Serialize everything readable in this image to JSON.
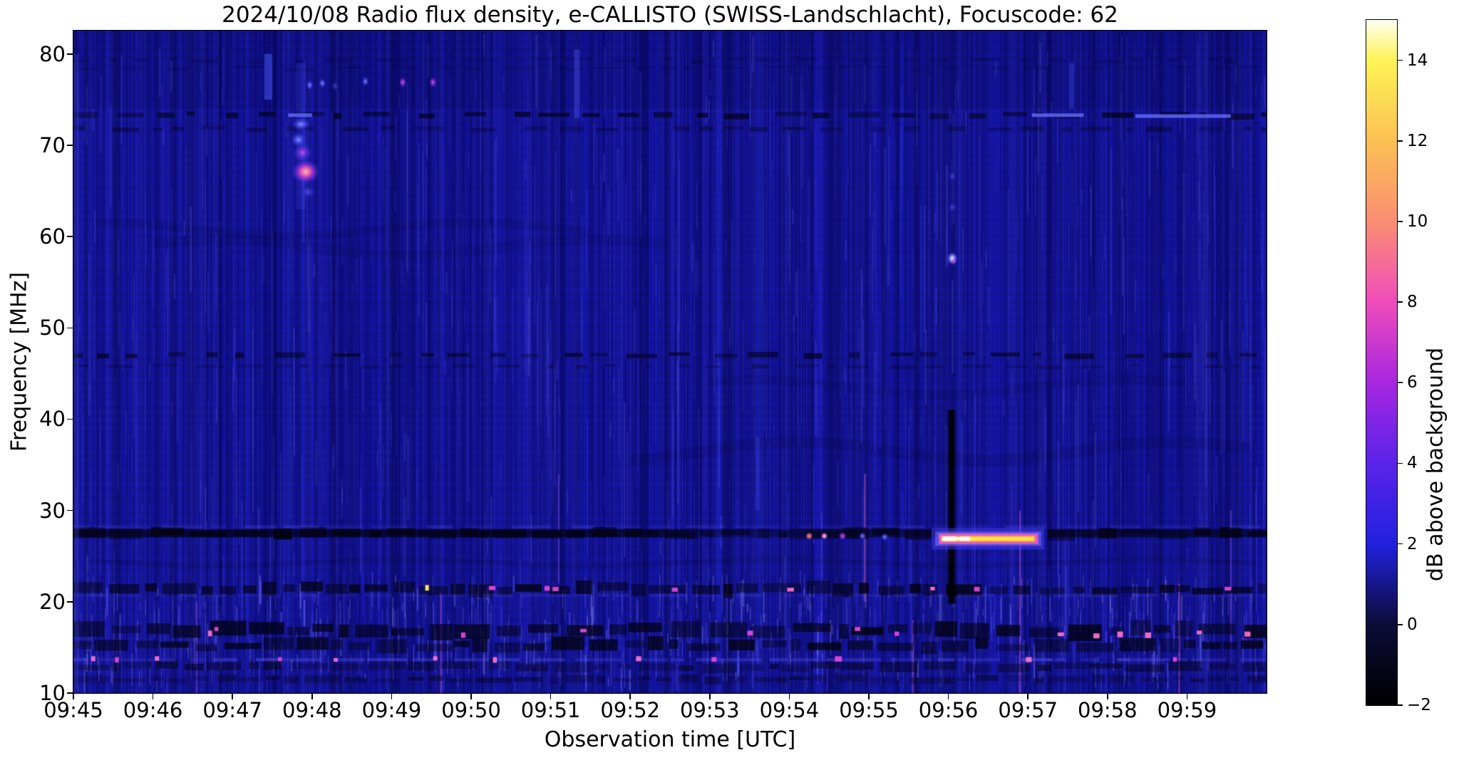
{
  "chart_data": {
    "type": "heatmap",
    "subtype": "radio-spectrogram",
    "title": "2024/10/08  Radio flux density, e-CALLISTO (SWISS-Landschlacht), Focuscode: 62",
    "date": "2024/10/08",
    "instrument": "e-CALLISTO (SWISS-Landschlacht)",
    "focuscode": "62",
    "xlabel": "Observation time [UTC]",
    "ylabel": "Frequency [MHz]",
    "x_tick_labels": [
      "09:45",
      "09:46",
      "09:47",
      "09:48",
      "09:49",
      "09:50",
      "09:51",
      "09:52",
      "09:53",
      "09:54",
      "09:55",
      "09:56",
      "09:57",
      "09:58",
      "09:59"
    ],
    "x_range_minutes": [
      0,
      15
    ],
    "time_start": "09:45",
    "time_end": "10:00",
    "y_ticks_mhz": [
      80,
      70,
      60,
      50,
      40,
      30,
      20,
      10
    ],
    "y_range_mhz": [
      10,
      82.56
    ],
    "grid": false,
    "base_color": "#14149b",
    "colorbar": {
      "label": "dB above background",
      "tick_labels": [
        "14",
        "12",
        "10",
        "8",
        "6",
        "4",
        "2",
        "0",
        "−2"
      ],
      "tick_values": [
        14,
        12,
        10,
        8,
        6,
        4,
        2,
        0,
        -2
      ],
      "range": [
        -2,
        15
      ],
      "gradient_stops": [
        [
          -2,
          "#000000"
        ],
        [
          0,
          "#0c0c38"
        ],
        [
          2,
          "#2121dd"
        ],
        [
          4,
          "#5a24ea"
        ],
        [
          6,
          "#a726e0"
        ],
        [
          8,
          "#ef4cba"
        ],
        [
          10,
          "#fa8e72"
        ],
        [
          12,
          "#fcc153"
        ],
        [
          14,
          "#fdf355"
        ],
        [
          15,
          "#fffff2"
        ]
      ]
    },
    "notable_features": [
      "Solar radio burst (type III like) 09:47:45-09:48:05 at 65-72 MHz, peak ~8 dB",
      "Small emission dots ~76.5-77 MHz between 09:48 and 09:49:30",
      "Intense narrowband emission ~26.5-27.5 MHz from 09:56:00 to 09:57:10, peak >14 dB",
      "Vertical data-gap / absorption line at 09:56:05 spanning ~20-41 MHz",
      "Bright point at 57.6 MHz at 09:56:05",
      "Persistent RFI bands near 73, 71.8, 47, 46, 27.5, 21.4, 16.9, 15.2, 12.9 MHz",
      "Strong blotchy interference below 22 MHz with magenta/pink speckles"
    ],
    "features": {
      "dashed_dark_bands": [
        {
          "f": 73.3,
          "h": 0.55,
          "alpha": 0.72
        },
        {
          "f": 71.8,
          "h": 0.45,
          "alpha": 0.42
        },
        {
          "f": 79.3,
          "h": 0.35,
          "alpha": 0.25
        },
        {
          "f": 78.4,
          "h": 0.3,
          "alpha": 0.2
        },
        {
          "f": 47.0,
          "h": 0.5,
          "alpha": 0.65
        },
        {
          "f": 45.8,
          "h": 0.4,
          "alpha": 0.32
        }
      ],
      "blotchy_dark_bands": [
        {
          "f": 21.4,
          "h": 1.1,
          "alpha": 0.82
        },
        {
          "f": 16.9,
          "h": 1.3,
          "alpha": 0.85
        },
        {
          "f": 15.2,
          "h": 1.1,
          "alpha": 0.8
        },
        {
          "f": 12.9,
          "h": 0.8,
          "alpha": 0.55
        },
        {
          "f": 11.5,
          "h": 0.6,
          "alpha": 0.45
        }
      ],
      "band_275_segments": [
        {
          "t1": 0.0,
          "t2": 7.7,
          "alpha": 0.9
        },
        {
          "t1": 7.7,
          "t2": 9.2,
          "alpha": 0.48
        },
        {
          "t1": 9.2,
          "t2": 10.85,
          "alpha": 0.7
        },
        {
          "t1": 12.25,
          "t2": 15.0,
          "alpha": 0.8
        }
      ],
      "bright_rows": [
        {
          "f": 13.65,
          "alpha": 0.5
        },
        {
          "f": 20.7,
          "alpha": 0.22
        },
        {
          "f": 28.2,
          "alpha": 0.25
        }
      ],
      "dark_arcs": [
        {
          "f": 60.8,
          "t1": 0.3,
          "t2": 6.5,
          "amp": 0.9,
          "alpha": 0.1
        },
        {
          "f": 58.8,
          "t1": 1.0,
          "t2": 7.5,
          "amp": 1.1,
          "alpha": 0.08
        },
        {
          "f": 43.5,
          "t1": 8.0,
          "t2": 14.0,
          "amp": 1.0,
          "alpha": 0.08
        },
        {
          "f": 36.5,
          "t1": 7.0,
          "t2": 14.8,
          "amp": 1.3,
          "alpha": 0.1
        },
        {
          "f": 24.3,
          "t1": 0.2,
          "t2": 14.9,
          "amp": 0.5,
          "alpha": 0.12
        }
      ],
      "vglows": [
        {
          "t": 2.45,
          "f1": 75.0,
          "f2": 80.0,
          "w": 0.1,
          "alpha": 0.5
        },
        {
          "t": 0.04,
          "f1": 10.0,
          "f2": 80.0,
          "w": 0.06,
          "alpha": 0.25
        },
        {
          "t": 6.33,
          "f1": 73.0,
          "f2": 80.5,
          "w": 0.07,
          "alpha": 0.4
        },
        {
          "t": 2.86,
          "f1": 63.0,
          "f2": 79.0,
          "w": 0.12,
          "alpha": 0.18
        },
        {
          "t": 12.55,
          "f1": 74.0,
          "f2": 79.0,
          "w": 0.06,
          "alpha": 0.3
        },
        {
          "t": 8.6,
          "f1": 30.0,
          "f2": 38.0,
          "w": 0.05,
          "alpha": 0.25
        }
      ],
      "burst_blobs": [
        {
          "t": 2.92,
          "f": 67.1,
          "rx": 0.17,
          "ry": 1.3,
          "pal": "pink-hot"
        },
        {
          "t": 2.88,
          "f": 69.2,
          "rx": 0.12,
          "ry": 1.0,
          "pal": "violet"
        },
        {
          "t": 2.83,
          "f": 70.6,
          "rx": 0.1,
          "ry": 0.8,
          "pal": "blue-bright"
        },
        {
          "t": 2.86,
          "f": 72.3,
          "rx": 0.12,
          "ry": 0.7,
          "pal": "blue-bright"
        },
        {
          "t": 2.95,
          "f": 64.9,
          "rx": 0.1,
          "ry": 0.7,
          "pal": "blue-dim"
        }
      ],
      "top_dots": [
        {
          "t": 2.97,
          "f": 76.6,
          "pal": "blue-bright"
        },
        {
          "t": 3.13,
          "f": 76.8,
          "pal": "blue-bright"
        },
        {
          "t": 3.29,
          "f": 76.5,
          "pal": "blue-dim"
        },
        {
          "t": 3.67,
          "f": 77.0,
          "pal": "blue-bright"
        },
        {
          "t": 4.14,
          "f": 76.9,
          "pal": "magenta"
        },
        {
          "t": 4.52,
          "f": 76.9,
          "pal": "magenta"
        }
      ],
      "vline_dark": {
        "t": 11.04,
        "f1": 19.8,
        "f2": 41.0,
        "w": 0.11,
        "alpha": 0.92
      },
      "bright_point_57": [
        {
          "t": 11.05,
          "f": 57.6,
          "rx": 0.07,
          "ry": 0.75,
          "pal": "white-blue"
        },
        {
          "t": 11.05,
          "f": 63.2,
          "rx": 0.05,
          "ry": 0.5,
          "pal": "blue-dim"
        },
        {
          "t": 11.05,
          "f": 66.6,
          "rx": 0.05,
          "ry": 0.5,
          "pal": "blue-dim"
        }
      ],
      "hstreak": {
        "t1": 10.88,
        "t2": 12.13,
        "f": 26.9,
        "white_t2": 11.29
      },
      "streak_precursors": [
        {
          "t": 9.25,
          "f": 27.2,
          "pal": "orange"
        },
        {
          "t": 9.44,
          "f": 27.2,
          "pal": "pink-white"
        },
        {
          "t": 9.67,
          "f": 27.2,
          "pal": "magenta"
        },
        {
          "t": 9.92,
          "f": 27.2,
          "pal": "blue-bright"
        },
        {
          "t": 10.2,
          "f": 27.1,
          "pal": "blue-bright"
        }
      ],
      "blue_dashes_73": [
        {
          "t1": 12.05,
          "t2": 12.7,
          "f": 73.3
        },
        {
          "t1": 13.35,
          "t2": 14.55,
          "f": 73.2
        },
        {
          "t1": 2.7,
          "t2": 3.0,
          "f": 73.3
        }
      ],
      "colored_streaks": [
        {
          "t": 4.62,
          "f1": 10,
          "f2": 21,
          "color": "#d050e0",
          "alpha": 0.45
        },
        {
          "t": 6.1,
          "f1": 22,
          "f2": 34,
          "color": "#8a60ff",
          "alpha": 0.35
        },
        {
          "t": 9.95,
          "f1": 20,
          "f2": 34,
          "color": "#e055d0",
          "alpha": 0.5
        },
        {
          "t": 11.9,
          "f1": 10,
          "f2": 30,
          "color": "#e055d0",
          "alpha": 0.45
        },
        {
          "t": 13.9,
          "f1": 10,
          "f2": 22,
          "color": "#ff70d0",
          "alpha": 0.4
        },
        {
          "t": 1.55,
          "f1": 10,
          "f2": 20,
          "color": "#c060e8",
          "alpha": 0.35
        },
        {
          "t": 14.55,
          "f1": 15,
          "f2": 30,
          "color": "#b060ff",
          "alpha": 0.35
        },
        {
          "t": 10.55,
          "f1": 10,
          "f2": 18,
          "color": "#e060c0",
          "alpha": 0.4
        }
      ],
      "speckles": [
        [
          0.25,
          13.8,
          "pink"
        ],
        [
          0.55,
          13.7,
          "magenta"
        ],
        [
          1.05,
          13.8,
          "pink"
        ],
        [
          1.72,
          16.6,
          "pink"
        ],
        [
          1.8,
          17.0,
          "magenta"
        ],
        [
          2.6,
          13.7,
          "magenta"
        ],
        [
          3.3,
          13.6,
          "pink"
        ],
        [
          4.45,
          21.6,
          "yellow"
        ],
        [
          4.55,
          13.8,
          "pink"
        ],
        [
          4.9,
          16.4,
          "magenta"
        ],
        [
          5.25,
          21.5,
          "magenta"
        ],
        [
          5.3,
          13.7,
          "pink"
        ],
        [
          6.05,
          21.4,
          "magenta"
        ],
        [
          6.4,
          16.8,
          "magenta"
        ],
        [
          7.1,
          13.8,
          "pink"
        ],
        [
          7.55,
          21.3,
          "magenta"
        ],
        [
          8.05,
          13.7,
          "magenta"
        ],
        [
          8.5,
          16.6,
          "magenta"
        ],
        [
          9.0,
          21.3,
          "pink"
        ],
        [
          9.6,
          13.8,
          "magenta"
        ],
        [
          10.35,
          16.5,
          "magenta"
        ],
        [
          10.8,
          21.4,
          "pink"
        ],
        [
          11.35,
          21.4,
          "magenta"
        ],
        [
          12.0,
          13.7,
          "pink"
        ],
        [
          12.4,
          16.4,
          "pink"
        ],
        [
          12.85,
          16.3,
          "pink"
        ],
        [
          13.15,
          16.5,
          "pink"
        ],
        [
          13.5,
          16.4,
          "pink"
        ],
        [
          13.85,
          13.7,
          "magenta"
        ],
        [
          14.15,
          16.6,
          "pink"
        ],
        [
          14.5,
          21.4,
          "magenta"
        ],
        [
          14.75,
          16.5,
          "pink"
        ],
        [
          5.95,
          21.5,
          "magenta"
        ],
        [
          9.85,
          17.0,
          "magenta"
        ]
      ]
    }
  }
}
